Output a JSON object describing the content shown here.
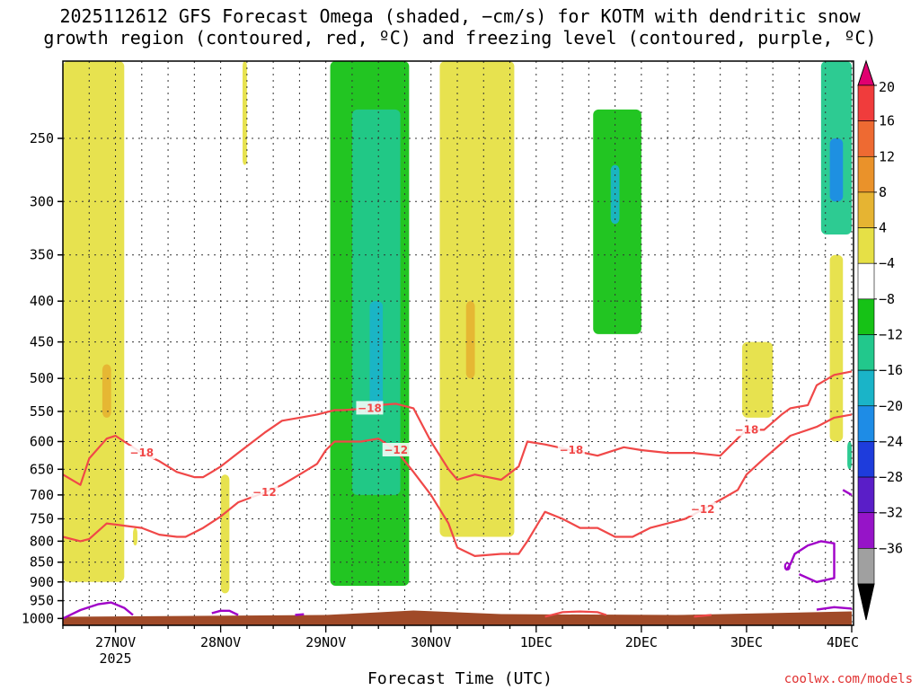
{
  "title_line1": "2025112612 GFS Forecast Omega (shaded, −cm/s) for KOTM with dendritic snow",
  "title_line2": "growth region (contoured, red, ºC) and freezing level (contoured, purple, ºC)",
  "credit": "coolwx.com/models",
  "chart_data": {
    "type": "heatmap",
    "title": "2025112612 GFS Forecast Omega (shaded, −cm/s) for KOTM with dendritic snow growth region (contoured, red, ºC) and freezing level (contoured, purple, ºC)",
    "xlabel": "Forecast Time (UTC)",
    "ylabel": "",
    "x_units": "hours since 2025-11-26 12Z",
    "xlim": [
      0,
      180
    ],
    "x_ticks": [
      {
        "hour": 12,
        "label": "27NOV",
        "sub": "2025"
      },
      {
        "hour": 36,
        "label": "28NOV",
        "sub": ""
      },
      {
        "hour": 60,
        "label": "29NOV",
        "sub": ""
      },
      {
        "hour": 84,
        "label": "30NOV",
        "sub": ""
      },
      {
        "hour": 108,
        "label": "1DEC",
        "sub": ""
      },
      {
        "hour": 132,
        "label": "2DEC",
        "sub": ""
      },
      {
        "hour": 156,
        "label": "3DEC",
        "sub": ""
      },
      {
        "hour": 180,
        "label": "4DEC",
        "sub": ""
      }
    ],
    "y_ticks": [
      250,
      300,
      350,
      400,
      450,
      500,
      550,
      600,
      650,
      700,
      750,
      800,
      850,
      900,
      950,
      1000
    ],
    "y_units": "hPa",
    "ylim": [
      200,
      1020
    ],
    "colorbar": {
      "labels": [
        "20",
        "16",
        "12",
        "8",
        "4",
        "−4",
        "−8",
        "−12",
        "−16",
        "−20",
        "−24",
        "−28",
        "−32",
        "−36"
      ],
      "colors": [
        "#e00070",
        "#f03c3c",
        "#ee6a32",
        "#ea922a",
        "#e6b432",
        "#e6e046",
        "#ffffff",
        "#16c216",
        "#22c88c",
        "#1ab4c8",
        "#1e8ce6",
        "#1e3cdc",
        "#5a1ec8",
        "#9614c8",
        "#a0a0a0",
        "#000000"
      ]
    },
    "shading_regions": [
      {
        "omega": 4,
        "t0": 0,
        "t1": 14,
        "p0": 200,
        "p1": 900
      },
      {
        "omega": 8,
        "t0": 9,
        "t1": 11,
        "p0": 480,
        "p1": 560
      },
      {
        "omega": 4,
        "t0": 16,
        "t1": 17,
        "p0": 770,
        "p1": 810
      },
      {
        "omega": 4,
        "t0": 36,
        "t1": 38,
        "p0": 660,
        "p1": 930
      },
      {
        "omega": 4,
        "t0": 41,
        "t1": 42,
        "p0": 200,
        "p1": 270
      },
      {
        "omega": -4,
        "t0": 61,
        "t1": 79,
        "p0": 200,
        "p1": 910
      },
      {
        "omega": -8,
        "t0": 66,
        "t1": 77,
        "p0": 230,
        "p1": 700
      },
      {
        "omega": -12,
        "t0": 70,
        "t1": 73,
        "p0": 400,
        "p1": 550
      },
      {
        "omega": 4,
        "t0": 86,
        "t1": 103,
        "p0": 200,
        "p1": 790
      },
      {
        "omega": 8,
        "t0": 92,
        "t1": 94,
        "p0": 400,
        "p1": 500
      },
      {
        "omega": -4,
        "t0": 121,
        "t1": 132,
        "p0": 230,
        "p1": 440
      },
      {
        "omega": -12,
        "t0": 125,
        "t1": 127,
        "p0": 270,
        "p1": 320
      },
      {
        "omega": 4,
        "t0": 155,
        "t1": 162,
        "p0": 450,
        "p1": 560
      },
      {
        "omega": -8,
        "t0": 173,
        "t1": 180,
        "p0": 200,
        "p1": 330
      },
      {
        "omega": -16,
        "t0": 175,
        "t1": 178,
        "p0": 250,
        "p1": 300
      },
      {
        "omega": 4,
        "t0": 175,
        "t1": 178,
        "p0": 350,
        "p1": 600
      },
      {
        "omega": -8,
        "t0": 179,
        "t1": 180,
        "p0": 600,
        "p1": 650
      }
    ],
    "series": [
      {
        "name": "-18",
        "label": "−18",
        "color": "#f04848",
        "x": [
          0,
          4,
          6,
          10,
          12,
          14,
          18,
          22,
          26,
          30,
          32,
          34,
          36,
          40,
          46,
          50,
          54,
          58,
          62,
          64,
          70,
          72,
          76,
          80,
          84,
          88,
          90,
          94,
          100,
          104,
          106,
          110,
          116,
          122,
          128,
          132,
          138,
          144,
          150,
          156,
          160,
          164,
          166,
          170,
          172,
          176,
          180
        ],
        "y": [
          660,
          680,
          630,
          595,
          590,
          600,
          620,
          635,
          655,
          665,
          665,
          655,
          645,
          620,
          585,
          565,
          560,
          555,
          548,
          548,
          545,
          540,
          538,
          545,
          600,
          650,
          670,
          660,
          670,
          645,
          600,
          605,
          615,
          625,
          610,
          615,
          620,
          620,
          625,
          580,
          580,
          555,
          545,
          540,
          510,
          495,
          490
        ]
      },
      {
        "name": "-12",
        "label": "−12",
        "color": "#f04848",
        "x": [
          0,
          4,
          6,
          10,
          14,
          18,
          22,
          26,
          28,
          32,
          36,
          40,
          46,
          50,
          54,
          58,
          60,
          62,
          68,
          72,
          76,
          80,
          84,
          88,
          90,
          94,
          100,
          104,
          106,
          110,
          114,
          118,
          122,
          126,
          130,
          134,
          138,
          142,
          146,
          150,
          154,
          156,
          160,
          166,
          170,
          172,
          176,
          180
        ],
        "y": [
          790,
          800,
          795,
          760,
          765,
          770,
          785,
          790,
          790,
          770,
          745,
          715,
          695,
          680,
          660,
          640,
          615,
          600,
          600,
          595,
          615,
          655,
          700,
          760,
          815,
          835,
          830,
          830,
          800,
          735,
          750,
          770,
          770,
          790,
          790,
          770,
          760,
          750,
          730,
          710,
          690,
          660,
          630,
          590,
          580,
          575,
          560,
          555
        ]
      }
    ],
    "freezing_segments": [
      {
        "name": "0",
        "x": [
          0,
          2,
          4,
          8,
          11,
          14,
          16
        ],
        "y": [
          1000,
          988,
          976,
          960,
          955,
          970,
          990
        ]
      },
      {
        "name": "0",
        "x": [
          34,
          36,
          38,
          40
        ],
        "y": [
          985,
          978,
          978,
          990
        ]
      },
      {
        "name": "0",
        "x": [
          53,
          55
        ],
        "y": [
          990,
          988
        ]
      },
      {
        "name": "0",
        "x": [
          165,
          166,
          167,
          170,
          173,
          176,
          176,
          172,
          168
        ],
        "y": [
          870,
          855,
          830,
          810,
          800,
          805,
          890,
          900,
          880
        ]
      },
      {
        "name": "0",
        "x": [
          178,
          180
        ],
        "y": [
          690,
          700
        ]
      },
      {
        "name": "0",
        "x": [
          172,
          176,
          180
        ],
        "y": [
          975,
          968,
          972
        ]
      }
    ],
    "red_bottom_segments": [
      {
        "x": [
          110,
          114,
          118,
          122,
          124
        ],
        "y": [
          995,
          982,
          980,
          982,
          990
        ]
      },
      {
        "x": [
          144,
          148
        ],
        "y": [
          995,
          990
        ]
      }
    ],
    "surface_pressure_hPa": 985
  }
}
